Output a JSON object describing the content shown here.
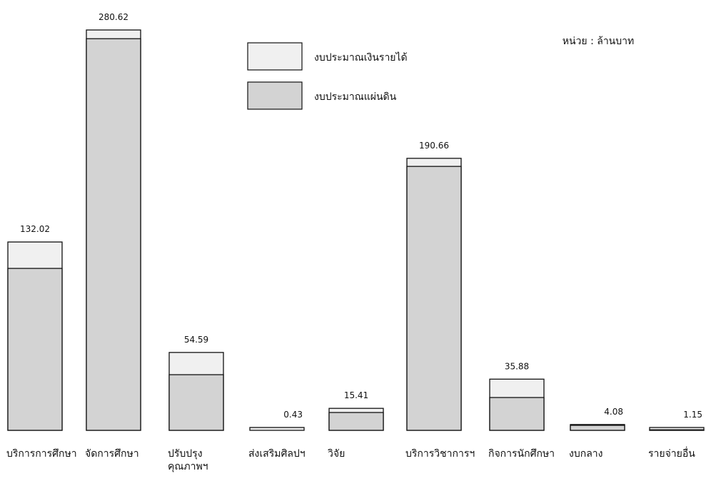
{
  "chart_data": {
    "type": "bar",
    "stacked": true,
    "unit_label": "หน่วย : ล้านบาท",
    "legend_position": "top-center",
    "categories": [
      "บริการการศึกษา",
      "จัดการศึกษา",
      "ปรับปรุง|คุณภาพฯ",
      "ส่งเสริมศิลปฯ",
      "วิจัย",
      "บริการวิชาการฯ",
      "กิจการนักศึกษา",
      "งบกลาง",
      "รายจ่ายอื่น"
    ],
    "value_labels": [
      "132.02",
      "280.62",
      "54.59",
      "0.43",
      "15.41",
      "190.66",
      "35.88",
      "4.08",
      "1.15"
    ],
    "series": [
      {
        "name": "งบประมาณแผ่นดิน",
        "color": "#d3d3d3",
        "values": [
          113.5,
          274.5,
          39.0,
          0.15,
          12.5,
          185.0,
          23.0,
          3.5,
          0.4
        ]
      },
      {
        "name": "งบประมาณเงินรายได้",
        "color": "#f0f0f0",
        "values": [
          18.52,
          6.12,
          15.59,
          0.28,
          2.91,
          5.66,
          12.88,
          0.58,
          0.75
        ]
      }
    ],
    "ylim": [
      0,
      280.62
    ],
    "grid": false
  }
}
